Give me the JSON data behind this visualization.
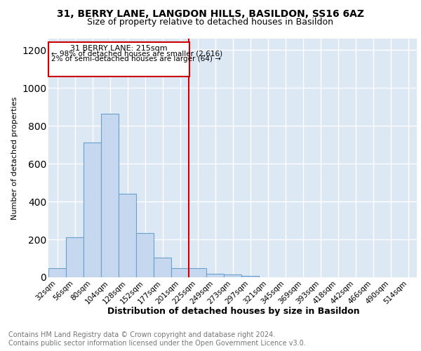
{
  "title1": "31, BERRY LANE, LANGDON HILLS, BASILDON, SS16 6AZ",
  "title2": "Size of property relative to detached houses in Basildon",
  "xlabel": "Distribution of detached houses by size in Basildon",
  "ylabel": "Number of detached properties",
  "footnote": "Contains HM Land Registry data © Crown copyright and database right 2024.\nContains public sector information licensed under the Open Government Licence v3.0.",
  "bar_labels": [
    "32sqm",
    "56sqm",
    "80sqm",
    "104sqm",
    "128sqm",
    "152sqm",
    "177sqm",
    "201sqm",
    "225sqm",
    "249sqm",
    "273sqm",
    "297sqm",
    "321sqm",
    "345sqm",
    "369sqm",
    "393sqm",
    "418sqm",
    "442sqm",
    "466sqm",
    "490sqm",
    "514sqm"
  ],
  "bar_values": [
    48,
    210,
    710,
    865,
    440,
    235,
    103,
    48,
    47,
    20,
    13,
    8,
    1,
    0,
    0,
    0,
    0,
    0,
    0,
    0,
    0
  ],
  "bar_color": "#c5d8ef",
  "bar_edge_color": "#6aa0cc",
  "annotation_text_line1": "31 BERRY LANE: 215sqm",
  "annotation_text_line2": "← 98% of detached houses are smaller (2,616)",
  "annotation_text_line3": "2% of semi-detached houses are larger (64) →",
  "annotation_box_color": "#cc0000",
  "vline_color": "#cc0000",
  "vline_index": 7.5,
  "ylim": [
    0,
    1260
  ],
  "yticks": [
    0,
    200,
    400,
    600,
    800,
    1000,
    1200
  ],
  "plot_bg_color": "#dde8f5",
  "title1_fontsize": 10,
  "title2_fontsize": 9,
  "footnote_fontsize": 7,
  "ylabel_fontsize": 8,
  "xlabel_fontsize": 9,
  "tick_fontsize": 7.5
}
